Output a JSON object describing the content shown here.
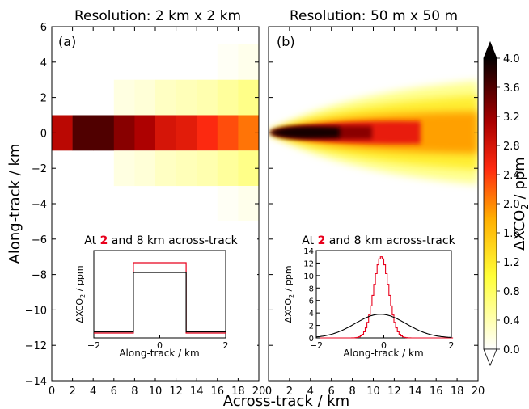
{
  "figure": {
    "xlabel": "Across-track / km",
    "ylabel": "Along-track / km",
    "colorbar_label": "ΔXCO",
    "colorbar_sub": "2",
    "colorbar_unit": " / ppm"
  },
  "panels": [
    {
      "title": "Resolution: 2 km x 2 km",
      "tag": "(a)",
      "inset": {
        "title_before": "At ",
        "title_red": "2",
        "title_after": " and 8 km across-track",
        "ylabel": "ΔXCO",
        "ylabel_sub": "2",
        "ylabel_unit": " / ppm",
        "xlabel": "Along-track / km"
      }
    },
    {
      "title": "Resolution: 50 m x 50 m",
      "tag": "(b)",
      "inset": {
        "title_before": "At ",
        "title_red": "2",
        "title_after": " and 8 km across-track",
        "ylabel": "ΔXCO",
        "ylabel_sub": "2",
        "ylabel_unit": " / ppm",
        "xlabel": "Along-track / km"
      }
    }
  ],
  "chart_data": {
    "type": "heatmap",
    "x_ticks": [
      "0",
      "2",
      "4",
      "6",
      "8",
      "10",
      "12",
      "14",
      "16",
      "18",
      "20"
    ],
    "y_ticks": [
      "6",
      "4",
      "2",
      "0",
      "−2",
      "−4",
      "−6",
      "−8",
      "−10",
      "−12",
      "−14"
    ],
    "xlim": [
      0,
      20
    ],
    "ylim": [
      -14,
      6
    ],
    "colorbar": {
      "range": [
        0.0,
        4.0
      ],
      "ticks": [
        "4.0",
        "3.6",
        "3.2",
        "2.8",
        "2.4",
        "2.0",
        "1.6",
        "1.2",
        "0.8",
        "0.4",
        "0.0"
      ]
    },
    "panel_a_grid": {
      "cell_km": 2,
      "x_centers": [
        1,
        3,
        5,
        7,
        9,
        11,
        13,
        15,
        17,
        19
      ],
      "row_minus_2_to_0_and_0_to_2": [
        0,
        0,
        0,
        0.5,
        0.6,
        0.6,
        0.55,
        0.5,
        0.5,
        0.5
      ],
      "center_row_y_minus_1_to_1": [
        3.0,
        3.6,
        3.6,
        3.3,
        3.1,
        2.8,
        2.7,
        2.5,
        2.3,
        2.1
      ],
      "row_plus_minus_2_to_3": [
        0,
        0,
        0,
        0.15,
        0.2,
        0.3,
        0.35,
        0.4,
        0.5,
        0.6
      ],
      "row_plus_minus_3_to_5": [
        0,
        0,
        0,
        0,
        0,
        0,
        0,
        0,
        0.05,
        0.1
      ]
    },
    "insets": {
      "x_ticks": [
        "−2",
        "0",
        "2"
      ],
      "xlim": [
        -2,
        2
      ],
      "a": {
        "ylim": [
          0,
          3.6
        ],
        "series": [
          {
            "color": "#e8001c",
            "x": [
              -2,
              -0.8,
              -0.8,
              0.8,
              0.8,
              2
            ],
            "y": [
              0.2,
              0.2,
              3.1,
              3.1,
              0.2,
              0.2
            ]
          },
          {
            "color": "#000000",
            "x": [
              -2,
              -0.8,
              -0.8,
              0.8,
              0.8,
              2
            ],
            "y": [
              0.25,
              0.25,
              2.7,
              2.7,
              0.25,
              0.25
            ]
          }
        ]
      },
      "b": {
        "ylim": [
          0,
          14
        ],
        "y_ticks": [
          "0",
          "2",
          "4",
          "6",
          "8",
          "10",
          "12",
          "14"
        ],
        "series": [
          {
            "color": "#e8001c",
            "type": "gaussian",
            "amp": 13,
            "center": -0.1,
            "sigma": 0.22
          },
          {
            "color": "#000000",
            "type": "gaussian",
            "amp": 3.8,
            "center": -0.1,
            "sigma": 0.75
          }
        ]
      }
    }
  }
}
